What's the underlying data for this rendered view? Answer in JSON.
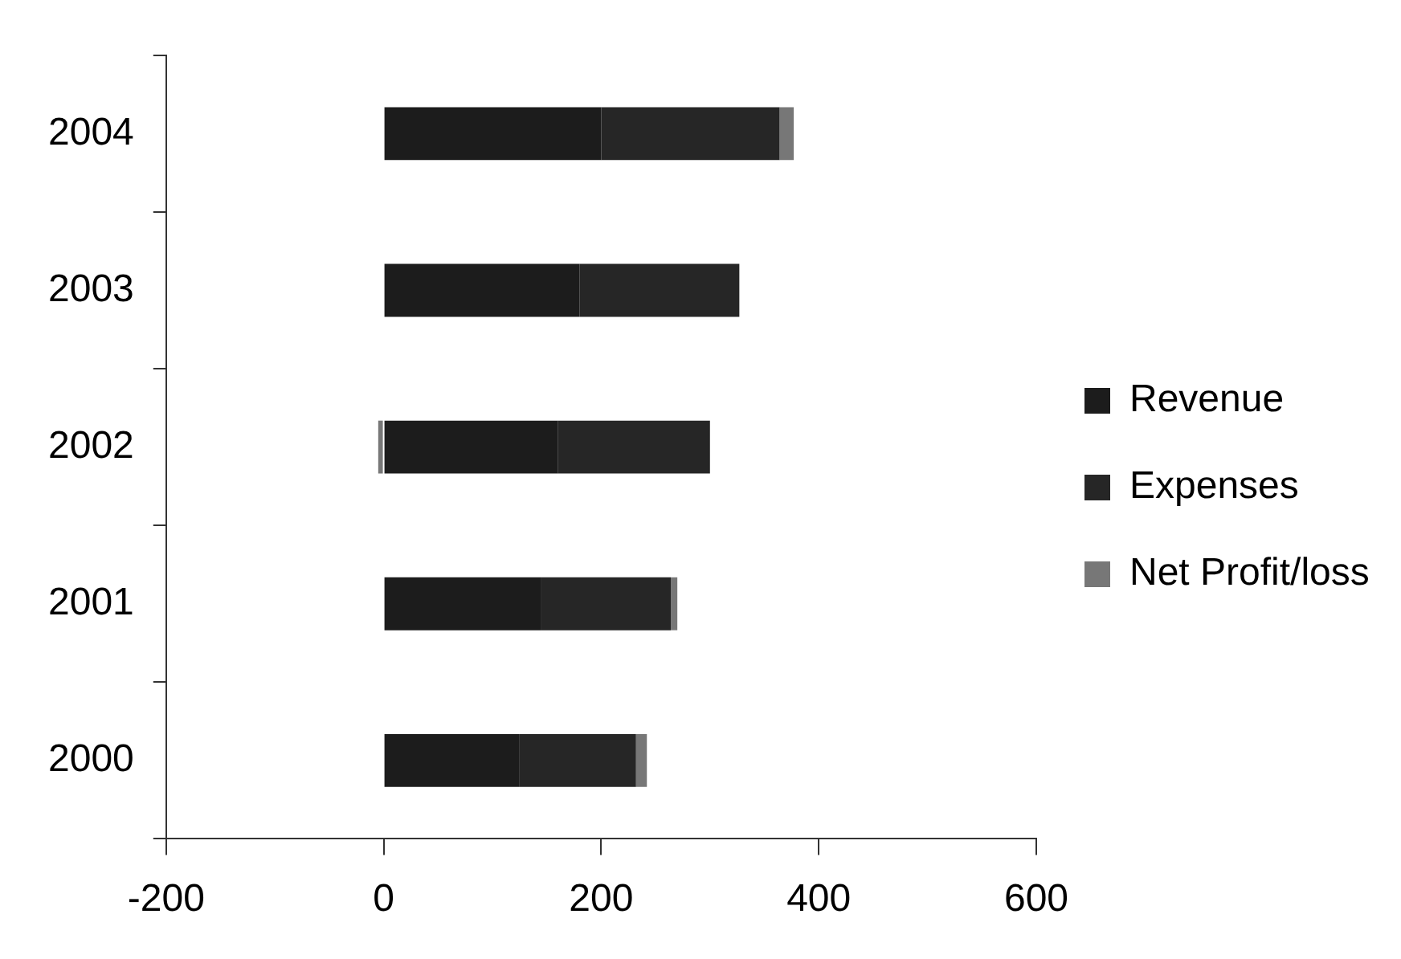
{
  "chart_data": {
    "type": "bar",
    "orientation": "horizontal",
    "stacked": true,
    "categories": [
      "2004",
      "2003",
      "2002",
      "2001",
      "2000"
    ],
    "series": [
      {
        "name": "Revenue",
        "color": "#1c1c1c",
        "values": [
          200,
          180,
          160,
          145,
          125
        ]
      },
      {
        "name": "Expenses",
        "color": "#262626",
        "values": [
          164,
          147,
          140,
          119,
          107
        ]
      },
      {
        "name": "Net Profit/loss",
        "color": "#777777",
        "values": [
          13,
          0,
          -5,
          6,
          10
        ]
      }
    ],
    "xlim": [
      -200,
      600
    ],
    "xticks": [
      -200,
      0,
      200,
      400,
      600
    ],
    "grid": false,
    "legend": "right"
  }
}
